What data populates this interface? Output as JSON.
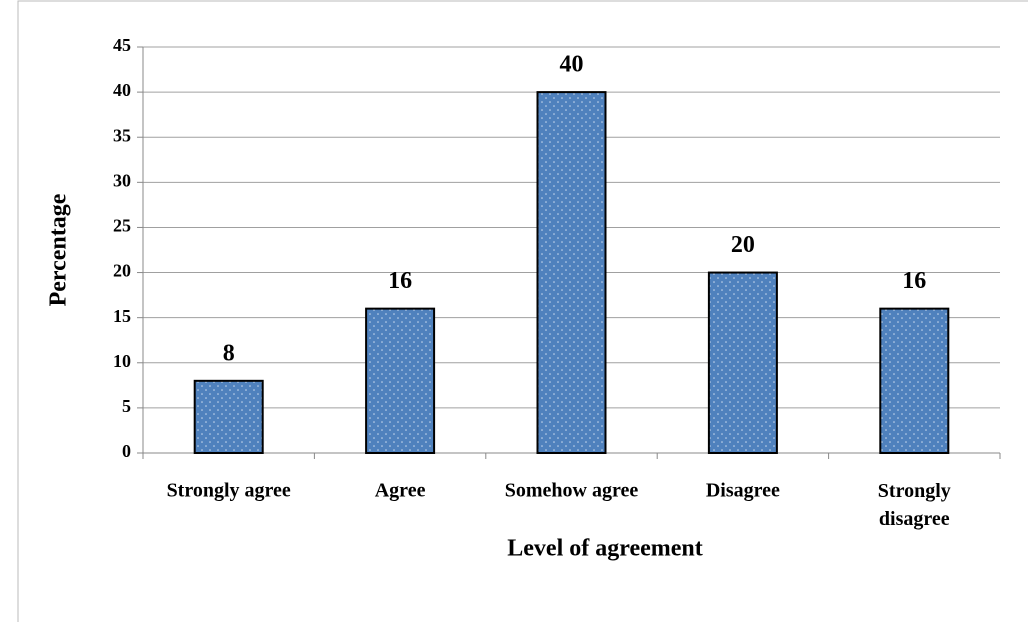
{
  "chart_data": {
    "type": "bar",
    "xlabel": "Level of agreement",
    "ylabel": "Percentage",
    "categories": [
      "Strongly agree",
      "Agree",
      "Somehow agree",
      "Disagree",
      "Strongly disagree"
    ],
    "values": [
      8,
      16,
      40,
      20,
      16
    ],
    "color": "#4f81bd",
    "ylim": [
      0,
      45
    ],
    "yticks": [
      0,
      5,
      10,
      15,
      20,
      25,
      30,
      35,
      40,
      45
    ],
    "grid": true
  }
}
